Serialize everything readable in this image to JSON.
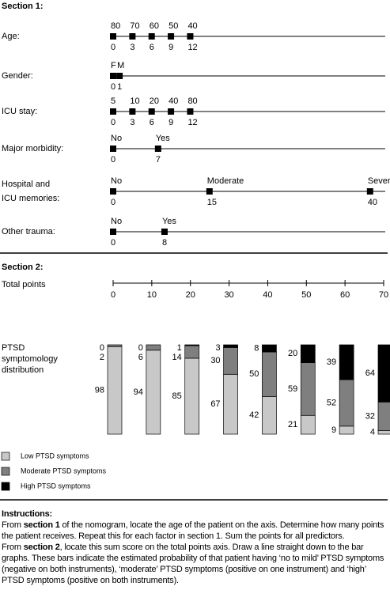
{
  "section1": {
    "title": "Section 1:",
    "rows": [
      {
        "label": [
          "Age:"
        ],
        "top": [
          80,
          70,
          60,
          50,
          40
        ],
        "points": [
          0,
          3,
          6,
          9,
          12
        ]
      },
      {
        "label": [
          "Gender:"
        ],
        "top": [
          "F",
          "M"
        ],
        "points": [
          0,
          1
        ]
      },
      {
        "label": [
          "ICU stay:"
        ],
        "top": [
          5,
          10,
          20,
          40,
          80
        ],
        "points": [
          0,
          3,
          6,
          9,
          12
        ]
      },
      {
        "label": [
          "Major morbidity:"
        ],
        "top": [
          "No",
          "Yes"
        ],
        "points": [
          0,
          7
        ]
      },
      {
        "label": [
          "Hospital and",
          "ICU memories:"
        ],
        "top": [
          "No",
          "Moderate",
          "Severe"
        ],
        "points": [
          0,
          15,
          40
        ]
      },
      {
        "label": [
          "Other trauma:"
        ],
        "top": [
          "No",
          "Yes"
        ],
        "points": [
          0,
          8
        ]
      }
    ]
  },
  "section2": {
    "title": "Section 2:",
    "total_points": {
      "label": "Total points",
      "xlim": [
        0,
        70
      ],
      "xticks": [
        0,
        10,
        20,
        30,
        40,
        50,
        60,
        70
      ]
    },
    "distribution": {
      "label": [
        "PTSD",
        "symptomology",
        "distribution"
      ],
      "series": [
        {
          "name": "Low PTSD symptoms",
          "color": "#c8c8c8",
          "values": [
            98,
            94,
            85,
            67,
            42,
            21,
            9,
            4
          ]
        },
        {
          "name": "Moderate PTSD symptoms",
          "color": "#7f7f7f",
          "values": [
            2,
            6,
            14,
            30,
            50,
            59,
            52,
            32
          ]
        },
        {
          "name": "High PTSD symptoms",
          "color": "#000000",
          "values": [
            0,
            0,
            1,
            3,
            8,
            20,
            39,
            64
          ]
        }
      ]
    }
  },
  "instructions": {
    "title": "Instructions:",
    "paragraphs": [
      {
        "before": "From ",
        "bold": "section 1",
        "after": " of the nomogram, locate the age of the patient on the axis. Determine how many points the patient receives. Repeat this for each factor in section 1. Sum the points for all predictors."
      },
      {
        "before": "From ",
        "bold": "section 2",
        "after": ", locate this sum score on the total points axis. Draw a line straight down to the bar graphs. These bars indicate the estimated probability of that patient having ‘no to mild’ PTSD symptoms (negative on both instruments), ‘moderate’ PTSD symptoms (positive on one instrument) and ‘high’ PTSD symptoms (positive on both instruments)."
      }
    ]
  }
}
